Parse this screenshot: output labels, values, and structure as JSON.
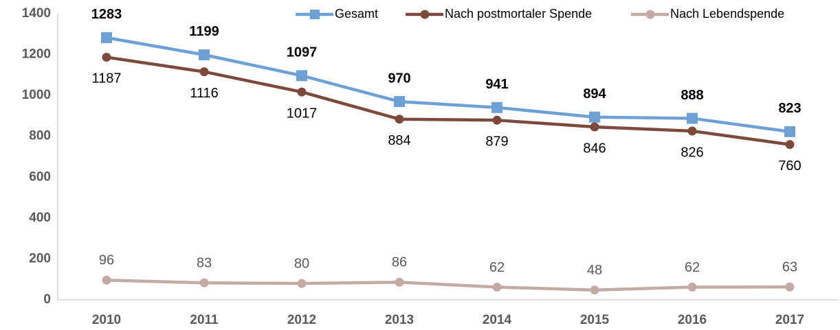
{
  "chart_data": {
    "type": "line",
    "categories": [
      "2010",
      "2011",
      "2012",
      "2013",
      "2014",
      "2015",
      "2016",
      "2017"
    ],
    "series": [
      {
        "name": "Gesamt",
        "color": "#6fa0d4",
        "marker": "square",
        "values": [
          1283,
          1199,
          1097,
          970,
          941,
          894,
          888,
          823
        ]
      },
      {
        "name": "Nach postmortaler Spende",
        "color": "#7b4a3c",
        "marker": "circle",
        "values": [
          1187,
          1116,
          1017,
          884,
          879,
          846,
          826,
          760
        ]
      },
      {
        "name": "Nach Lebendspende",
        "color": "#c4aaa4",
        "marker": "circle",
        "values": [
          96,
          83,
          80,
          86,
          62,
          48,
          62,
          63
        ]
      }
    ],
    "ylim": [
      0,
      1400
    ],
    "yticks": [
      0,
      200,
      400,
      600,
      800,
      1000,
      1200,
      1400
    ],
    "grid": false,
    "legend": "top"
  }
}
